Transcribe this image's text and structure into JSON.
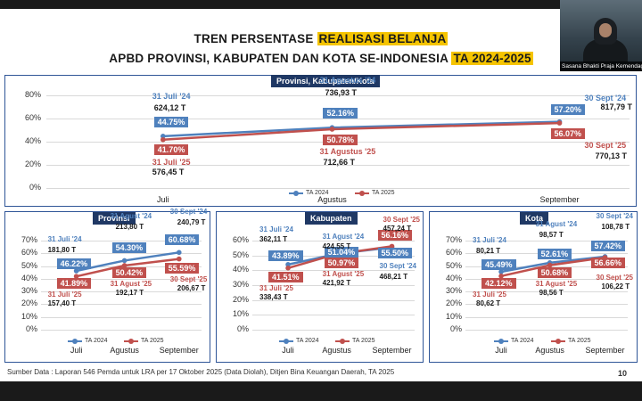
{
  "title": {
    "line1_prefix": "TREN PERSENTASE",
    "line1_highlight": "REALISASI BELANJA",
    "line2_prefix": "APBD PROVINSI, KABUPATEN DAN KOTA SE-INDONESIA",
    "line2_highlight": "TA 2024-2025"
  },
  "webcam": {
    "caption": "Sasana Bhakti Praja Kemendagri"
  },
  "colors": {
    "series_2024": "#4f81bd",
    "series_2025": "#c0504d",
    "panel_header": "#1f3864",
    "highlight": "#f5c400"
  },
  "chart_data": [
    {
      "id": "main",
      "type": "line",
      "title": "Provinsi, Kabupaten/Kota",
      "categories": [
        "Juli",
        "Agustus",
        "September"
      ],
      "yticks": [
        "80%",
        "60%",
        "40%",
        "20%",
        "0%"
      ],
      "ylim": [
        0,
        80
      ],
      "series": [
        {
          "name": "TA 2024",
          "values": [
            44.75,
            52.16,
            57.2
          ],
          "labels": [
            "44.75%",
            "52.16%",
            "57.20%"
          ],
          "dates": [
            "31 Juli '24",
            "31 Agustus '24",
            "30 Sept '24"
          ],
          "amounts": [
            "624,12 T",
            "736,93 T",
            "817,79 T"
          ]
        },
        {
          "name": "TA 2025",
          "values": [
            41.7,
            50.78,
            56.07
          ],
          "labels": [
            "41.70%",
            "50.78%",
            "56.07%"
          ],
          "dates": [
            "31 Juli '25",
            "31 Agustus '25",
            "30 Sept '25"
          ],
          "amounts": [
            "576,45 T",
            "712,66 T",
            "770,13 T"
          ]
        }
      ]
    },
    {
      "id": "provinsi",
      "type": "line",
      "title": "Provinsi",
      "categories": [
        "Juli",
        "Agustus",
        "September"
      ],
      "yticks": [
        "70%",
        "60%",
        "50%",
        "40%",
        "30%",
        "20%",
        "10%",
        "0%"
      ],
      "ylim": [
        0,
        70
      ],
      "series": [
        {
          "name": "TA 2024",
          "values": [
            46.22,
            54.3,
            60.68
          ],
          "labels": [
            "46.22%",
            "54.30%",
            "60.68%"
          ],
          "dates": [
            "31 Juli '24",
            "31 Agust '24",
            "30 Sept '24"
          ],
          "amounts": [
            "181,80 T",
            "213,80 T",
            "240,79 T"
          ]
        },
        {
          "name": "TA 2025",
          "values": [
            41.89,
            50.42,
            55.59
          ],
          "labels": [
            "41.89%",
            "50.42%",
            "55.59%"
          ],
          "dates": [
            "31 Juli '25",
            "31 Agust '25",
            "30 Sept '25"
          ],
          "amounts": [
            "157,40 T",
            "192,17 T",
            "206,67 T"
          ]
        }
      ]
    },
    {
      "id": "kabupaten",
      "type": "line",
      "title": "Kabupaten",
      "categories": [
        "Juli",
        "Agustus",
        "September"
      ],
      "yticks": [
        "60%",
        "50%",
        "40%",
        "30%",
        "20%",
        "10%",
        "0%"
      ],
      "ylim": [
        0,
        60
      ],
      "series": [
        {
          "name": "TA 2024",
          "values": [
            43.89,
            51.04,
            55.5
          ],
          "labels": [
            "43.89%",
            "51.04%",
            "55.50%"
          ],
          "dates": [
            "31 Juli '24",
            "31 Agust '24",
            "30 Sept '24"
          ],
          "amounts": [
            "362,11 T",
            "424,55 T",
            "468,21 T"
          ]
        },
        {
          "name": "TA 2025",
          "values": [
            41.51,
            50.97,
            56.16
          ],
          "labels": [
            "41.51%",
            "50.97%",
            "56.16%"
          ],
          "dates": [
            "31 Juli '25",
            "31 Agust '25",
            "30 Sept '25"
          ],
          "amounts": [
            "338,43 T",
            "421,92 T",
            "457,24 T"
          ]
        }
      ]
    },
    {
      "id": "kota",
      "type": "line",
      "title": "Kota",
      "categories": [
        "Juli",
        "Agustus",
        "September"
      ],
      "yticks": [
        "70%",
        "60%",
        "50%",
        "40%",
        "30%",
        "20%",
        "10%",
        "0%"
      ],
      "ylim": [
        0,
        70
      ],
      "series": [
        {
          "name": "TA 2024",
          "values": [
            45.49,
            52.61,
            57.42
          ],
          "labels": [
            "45.49%",
            "52.61%",
            "57.42%"
          ],
          "dates": [
            "31 Juli '24",
            "31 Agust '24",
            "30 Sept '24"
          ],
          "amounts": [
            "80,21 T",
            "98,57 T",
            "108,78 T"
          ]
        },
        {
          "name": "TA 2025",
          "values": [
            42.12,
            50.68,
            56.66
          ],
          "labels": [
            "42.12%",
            "50.68%",
            "56.66%"
          ],
          "dates": [
            "31 Juli '25",
            "31 Agust '25",
            "30 Sept '25"
          ],
          "amounts": [
            "80,62 T",
            "98,56 T",
            "106,22 T"
          ]
        }
      ]
    }
  ],
  "footer": {
    "source": "Sumber Data : Laporan 546 Pemda untuk LRA per 17 Oktober 2025 (Data Diolah), Ditjen Bina Keuangan Daerah, TA 2025",
    "page": "10"
  }
}
